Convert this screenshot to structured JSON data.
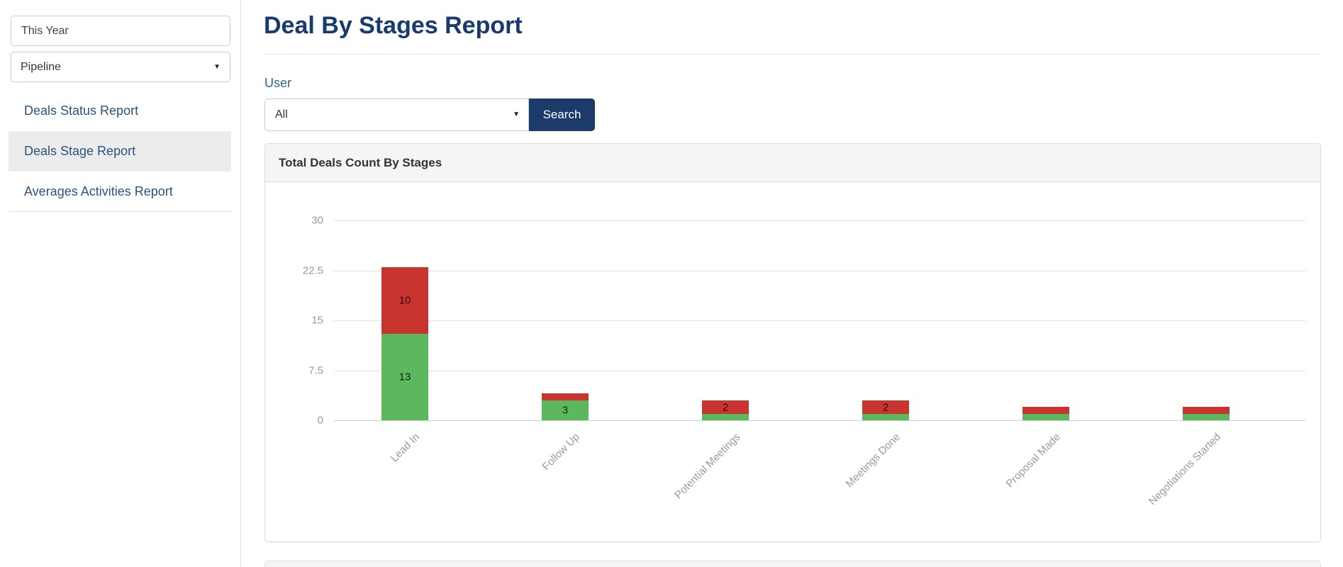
{
  "sidebar": {
    "period_value": "This Year",
    "pipeline_value": "Pipeline",
    "items": [
      {
        "label": "Deals Status Report",
        "active": false
      },
      {
        "label": "Deals Stage Report",
        "active": true
      },
      {
        "label": "Averages Activities Report",
        "active": false
      }
    ]
  },
  "main": {
    "title": "Deal By Stages Report",
    "filter": {
      "user_label": "User",
      "user_selected": "All",
      "search_label": "Search"
    },
    "panel_title": "Total Deals Count By Stages"
  },
  "chart_data": {
    "type": "bar",
    "stacked": true,
    "title": "Total Deals Count By Stages",
    "categories": [
      "Lead In",
      "Follow Up",
      "Potential Meetings",
      "Meetings Done",
      "Proposal Made",
      "Negotiations Started"
    ],
    "series": [
      {
        "name": "green-segment",
        "color": "#5cb85c",
        "values": [
          13,
          3,
          1,
          1,
          1,
          1
        ]
      },
      {
        "name": "red-segment",
        "color": "#c9352e",
        "values": [
          10,
          1,
          2,
          2,
          1,
          1
        ]
      }
    ],
    "visible_bar_labels": [
      13,
      10,
      3,
      2,
      2
    ],
    "bar_label_min_value": 2,
    "ylim": [
      0,
      30
    ],
    "yticks": [
      "0",
      "7.5",
      "15",
      "22.5",
      "30"
    ],
    "grid": true,
    "legend": "none",
    "x_label_rotation": -45
  },
  "colors": {
    "title_navy": "#173a73",
    "sidebar_link": "#2a5382",
    "active_item_bg": "#ececec",
    "search_button": "#1c3b6a",
    "panel_header_bg": "#f5f5f5",
    "bar_green": "#5cb85c",
    "bar_red": "#c9352e",
    "axis_text": "#9a9a9a"
  }
}
